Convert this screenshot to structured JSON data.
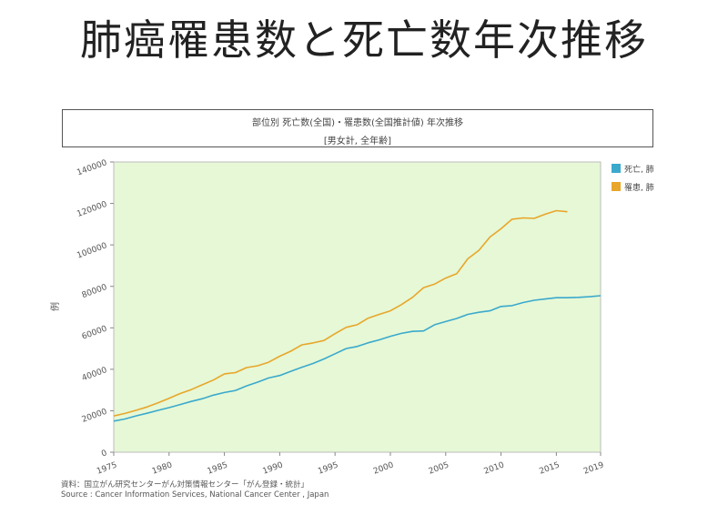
{
  "slide": {
    "title": "肺癌罹患数と死亡数年次推移"
  },
  "chart_box": {
    "title_line1": "部位別 死亡数(全国)・罹患数(全国推計値) 年次推移",
    "title_line2": "[男女計, 全年齢]"
  },
  "source": {
    "line1": "資料：国立がん研究センターがん対策情報センター「がん登録・統計」",
    "line2": "Source : Cancer Information Services, National Cancer Center , Japan"
  },
  "colors": {
    "plot_bg": "#e6f8d6",
    "series_death": "#3aa9cc",
    "series_incidence": "#e8a62a"
  },
  "chart_data": {
    "type": "line",
    "title": "部位別 死亡数(全国)・罹患数(全国推計値) 年次推移",
    "subtitle": "[男女計, 全年齢]",
    "xlabel": "",
    "ylabel": "例",
    "xlim": [
      1975,
      2019
    ],
    "ylim": [
      0,
      140000
    ],
    "x_ticks": [
      "1975",
      "1980",
      "1985",
      "1990",
      "1995",
      "2000",
      "2005",
      "2010",
      "2015",
      "2019"
    ],
    "y_ticks": [
      "0",
      "20000",
      "40000",
      "60000",
      "80000",
      "100000",
      "120000",
      "140000"
    ],
    "legend_position": "right-top",
    "series": [
      {
        "name": "死亡, 肺",
        "x": [
          1975,
          1976,
          1977,
          1978,
          1979,
          1980,
          1981,
          1982,
          1983,
          1984,
          1985,
          1986,
          1987,
          1988,
          1989,
          1990,
          1991,
          1992,
          1993,
          1994,
          1995,
          1996,
          1997,
          1998,
          1999,
          2000,
          2001,
          2002,
          2003,
          2004,
          2005,
          2006,
          2007,
          2008,
          2009,
          2010,
          2011,
          2012,
          2013,
          2014,
          2015,
          2016,
          2017,
          2018,
          2019
        ],
        "values": [
          15000,
          16000,
          17500,
          18800,
          20200,
          21500,
          23000,
          24500,
          25800,
          27500,
          28800,
          29800,
          32000,
          33800,
          35800,
          37000,
          39000,
          41000,
          42800,
          45000,
          47500,
          50000,
          51000,
          52800,
          54200,
          55900,
          57300,
          58300,
          58500,
          61500,
          63000,
          64500,
          66500,
          67500,
          68200,
          70300,
          70700,
          72200,
          73300,
          73900,
          74500,
          74500,
          74700,
          75000,
          75500
        ]
      },
      {
        "name": "罹患, 肺",
        "x": [
          1975,
          1976,
          1977,
          1978,
          1979,
          1980,
          1981,
          1982,
          1983,
          1984,
          1985,
          1986,
          1987,
          1988,
          1989,
          1990,
          1991,
          1992,
          1993,
          1994,
          1995,
          1996,
          1997,
          1998,
          1999,
          2000,
          2001,
          2002,
          2003,
          2004,
          2005,
          2006,
          2007,
          2008,
          2009,
          2010,
          2011,
          2012,
          2013,
          2014,
          2015,
          2016
        ],
        "values": [
          17500,
          18700,
          20200,
          21800,
          23800,
          26000,
          28300,
          30200,
          32500,
          34800,
          37800,
          38400,
          40800,
          41700,
          43400,
          46300,
          48700,
          51800,
          52700,
          53900,
          57200,
          60200,
          61500,
          64700,
          66500,
          68200,
          71200,
          74700,
          79400,
          81100,
          84000,
          86100,
          93300,
          97400,
          103800,
          107800,
          112400,
          113000,
          112800,
          114800,
          116500,
          116000
        ]
      }
    ]
  }
}
